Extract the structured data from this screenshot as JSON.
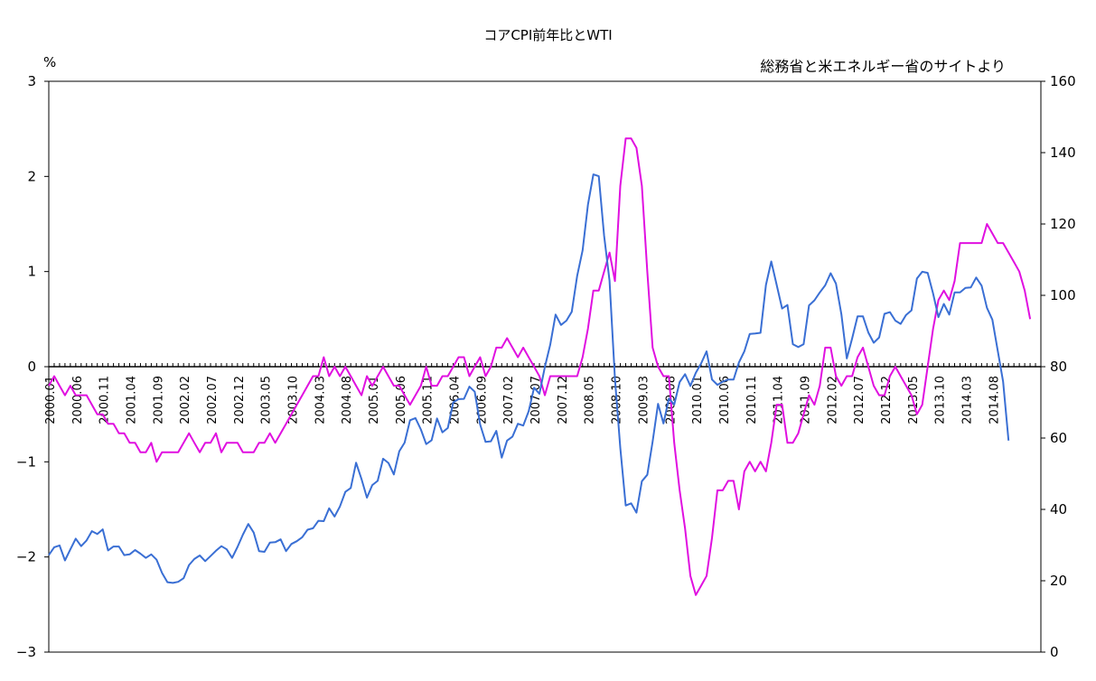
{
  "chart_data": {
    "type": "line",
    "title": "コアCPI前年比とWTI",
    "left_axis_unit": "%",
    "source_note": "総務省と米エネルギー省のサイトより",
    "y_left": {
      "min": -3,
      "max": 3,
      "ticks": [
        -3,
        -2,
        -1,
        0,
        1,
        2,
        3
      ],
      "tick_labels": [
        "−3",
        "−2",
        "−1",
        "0",
        "1",
        "2",
        "3"
      ]
    },
    "y_right": {
      "min": 0,
      "max": 160,
      "ticks": [
        0,
        20,
        40,
        60,
        80,
        100,
        120,
        140,
        160
      ]
    },
    "x": {
      "start": "2000.01",
      "months": 185,
      "tick_labels": [
        "2000.01",
        "2000.06",
        "2000.11",
        "2001.04",
        "2001.09",
        "2002.02",
        "2002.07",
        "2002.12",
        "2003.05",
        "2003.10",
        "2004.03",
        "2004.08",
        "2005.01",
        "2005.06",
        "2005.11",
        "2006.04",
        "2006.09",
        "2007.02",
        "2007.07",
        "2007.12",
        "2008.05",
        "2008.10",
        "2009.03",
        "2009.08",
        "2010.01",
        "2010.06",
        "2010.11",
        "2011.04",
        "2011.09",
        "2012.02",
        "2012.07",
        "2012.12",
        "2013.05",
        "2013.10",
        "2014.03",
        "2014.08"
      ]
    },
    "grid": false,
    "zero_line": "dotted",
    "series": [
      {
        "axis": "left",
        "color": "#e010e0",
        "values": [
          -0.2,
          -0.1,
          -0.2,
          -0.3,
          -0.2,
          -0.3,
          -0.3,
          -0.3,
          -0.4,
          -0.5,
          -0.5,
          -0.6,
          -0.6,
          -0.7,
          -0.7,
          -0.8,
          -0.8,
          -0.9,
          -0.9,
          -0.8,
          -1.0,
          -0.9,
          -0.9,
          -0.9,
          -0.9,
          -0.8,
          -0.7,
          -0.8,
          -0.9,
          -0.8,
          -0.8,
          -0.7,
          -0.9,
          -0.8,
          -0.8,
          -0.8,
          -0.9,
          -0.9,
          -0.9,
          -0.8,
          -0.8,
          -0.7,
          -0.8,
          -0.7,
          -0.6,
          -0.5,
          -0.4,
          -0.3,
          -0.2,
          -0.1,
          -0.1,
          0.1,
          -0.1,
          0.0,
          -0.1,
          0.0,
          -0.1,
          -0.2,
          -0.3,
          -0.1,
          -0.2,
          -0.1,
          0.0,
          -0.1,
          -0.2,
          -0.2,
          -0.3,
          -0.4,
          -0.3,
          -0.2,
          0.0,
          -0.2,
          -0.2,
          -0.1,
          -0.1,
          0.0,
          0.1,
          0.1,
          -0.1,
          0.0,
          0.1,
          -0.1,
          0.0,
          0.2,
          0.2,
          0.3,
          0.2,
          0.1,
          0.2,
          0.1,
          0.0,
          -0.1,
          -0.3,
          -0.1,
          -0.1,
          -0.1,
          -0.1,
          -0.1,
          -0.1,
          0.1,
          0.4,
          0.8,
          0.8,
          1.0,
          1.2,
          0.9,
          1.9,
          2.4,
          2.4,
          2.3,
          1.9,
          1.0,
          0.2,
          0.0,
          -0.1,
          -0.1,
          -0.8,
          -1.3,
          -1.7,
          -2.2,
          -2.4,
          -2.3,
          -2.2,
          -1.8,
          -1.3,
          -1.3,
          -1.2,
          -1.2,
          -1.5,
          -1.1,
          -1.0,
          -1.1,
          -1.0,
          -1.1,
          -0.8,
          -0.4,
          -0.4,
          -0.8,
          -0.8,
          -0.7,
          -0.5,
          -0.3,
          -0.4,
          -0.2,
          0.2,
          0.2,
          -0.1,
          -0.2,
          -0.1,
          -0.1,
          0.1,
          0.2,
          0.0,
          -0.2,
          -0.3,
          -0.3,
          -0.1,
          0.0,
          -0.1,
          -0.2,
          -0.3,
          -0.5,
          -0.4,
          0.0,
          0.4,
          0.7,
          0.8,
          0.7,
          0.9,
          1.3,
          1.3,
          1.3,
          1.3,
          1.3,
          1.5,
          1.4,
          1.3,
          1.3,
          1.2,
          1.1,
          1.0,
          0.8,
          0.5
        ]
      },
      {
        "axis": "right",
        "color": "#3a6fd4",
        "values": [
          27.2,
          29.4,
          29.9,
          25.7,
          28.8,
          31.8,
          29.7,
          31.3,
          33.9,
          33.1,
          34.4,
          28.5,
          29.6,
          29.6,
          27.2,
          27.4,
          28.6,
          27.6,
          26.4,
          27.4,
          25.9,
          22.2,
          19.6,
          19.4,
          19.7,
          20.7,
          24.4,
          26.1,
          27.1,
          25.5,
          26.9,
          28.4,
          29.7,
          28.8,
          26.4,
          29.5,
          32.9,
          35.9,
          33.5,
          28.3,
          28.1,
          30.7,
          30.8,
          31.6,
          28.3,
          30.3,
          31.1,
          32.2,
          34.3,
          34.7,
          36.8,
          36.7,
          40.3,
          38.0,
          40.8,
          44.9,
          46.0,
          53.1,
          48.5,
          43.3,
          46.8,
          48.0,
          54.2,
          53.0,
          49.8,
          56.3,
          58.7,
          65.0,
          65.6,
          62.4,
          58.3,
          59.4,
          65.5,
          61.6,
          62.8,
          70.0,
          70.9,
          71.0,
          74.4,
          73.0,
          63.8,
          58.9,
          59.1,
          62.0,
          54.5,
          59.3,
          60.4,
          64.0,
          63.5,
          67.5,
          74.1,
          72.4,
          79.9,
          86.2,
          94.6,
          91.7,
          92.9,
          95.4,
          105.5,
          112.6,
          125.4,
          133.9,
          133.4,
          116.7,
          104.1,
          76.6,
          57.3,
          41.1,
          41.7,
          39.1,
          47.9,
          49.7,
          59.0,
          69.6,
          64.1,
          71.1,
          69.4,
          75.7,
          77.9,
          74.6,
          78.3,
          81.0,
          84.3,
          76.4,
          74.9,
          75.8,
          76.4,
          76.4,
          81.2,
          84.3,
          89.2,
          89.3,
          89.5,
          102.9,
          109.5,
          102.9,
          96.3,
          97.3,
          86.3,
          85.5,
          86.3,
          97.2,
          98.6,
          100.8,
          102.8,
          106.2,
          103.3,
          94.7,
          82.3,
          87.9,
          94.1,
          94.1,
          89.6,
          86.7,
          88.2,
          94.8,
          95.3,
          92.9,
          92.0,
          94.5,
          95.8,
          104.7,
          106.6,
          106.3,
          100.5,
          93.9,
          97.6,
          94.6,
          100.8,
          100.8,
          102.1,
          102.2,
          105.0,
          102.7,
          96.5,
          93.2,
          84.4,
          75.8,
          59.3
        ]
      }
    ]
  }
}
